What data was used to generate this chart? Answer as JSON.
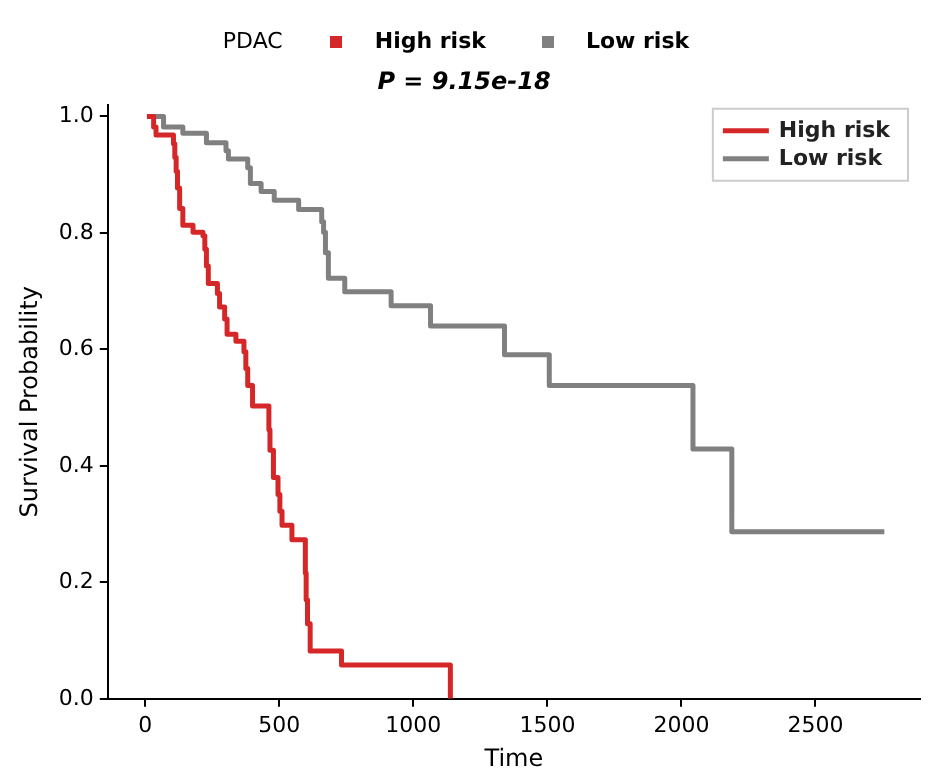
{
  "chart_data": {
    "type": "step",
    "title": "P = 9.15e-18",
    "xlabel": "Time",
    "ylabel": "Survival Probability",
    "legend_title": "PDAC",
    "legend": "top right",
    "grid": false,
    "marker": "none",
    "line_style": "solid",
    "xlim": [
      -140,
      2890
    ],
    "xticks": [
      0,
      500,
      1000,
      1500,
      2000,
      2500
    ],
    "ylim": [
      0,
      1.02
    ],
    "yticks": [
      {
        "value": 0,
        "label": "0.0"
      },
      0.2,
      0.4,
      0.6,
      0.8,
      {
        "value": 1,
        "label": "1.0"
      }
    ],
    "series": [
      {
        "name": "High risk",
        "color": "#d62728",
        "x": [
          6,
          31,
          40,
          105,
          110,
          115,
          120,
          128,
          140,
          178,
          215,
          222,
          228,
          235,
          269,
          277,
          296,
          305,
          338,
          368,
          375,
          382,
          400,
          461,
          465,
          478,
          495,
          502,
          510,
          547,
          597,
          600,
          605,
          615,
          732,
          1138
        ],
        "values": [
          1.0,
          0.982,
          0.968,
          0.953,
          0.93,
          0.906,
          0.877,
          0.842,
          0.813,
          0.801,
          0.795,
          0.772,
          0.743,
          0.713,
          0.696,
          0.673,
          0.652,
          0.626,
          0.614,
          0.596,
          0.567,
          0.538,
          0.503,
          0.462,
          0.427,
          0.38,
          0.351,
          0.322,
          0.298,
          0.273,
          0.216,
          0.17,
          0.129,
          0.082,
          0.058,
          0
        ]
      },
      {
        "name": "Low risk",
        "color": "#808080",
        "x": [
          6,
          68,
          140,
          228,
          301,
          310,
          382,
          392,
          432,
          481,
          572,
          658,
          665,
          672,
          683,
          744,
          917,
          1064,
          1340,
          1507,
          2043,
          2188,
          2757
        ],
        "values": [
          1.0,
          0.982,
          0.971,
          0.955,
          0.941,
          0.927,
          0.912,
          0.885,
          0.871,
          0.856,
          0.84,
          0.819,
          0.801,
          0.766,
          0.722,
          0.699,
          0.675,
          0.64,
          0.591,
          0.538,
          0.429,
          0.287,
          0.287
        ]
      }
    ]
  }
}
